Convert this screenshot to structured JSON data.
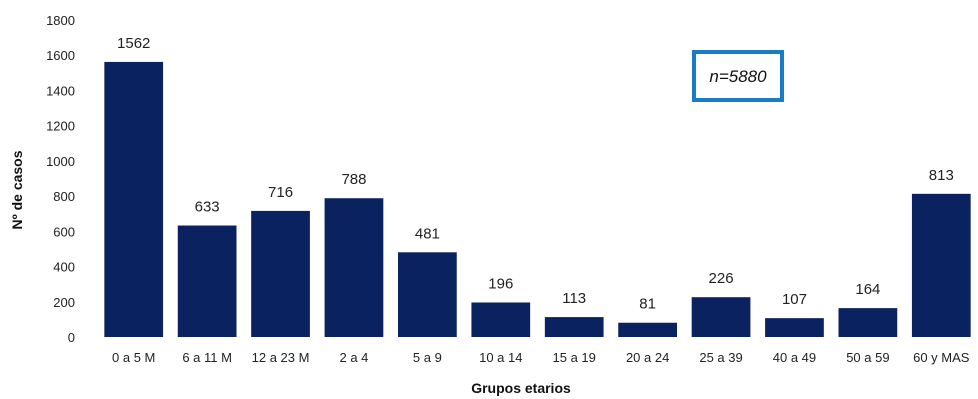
{
  "chart_data": {
    "type": "bar",
    "categories": [
      "0 a 5 M",
      "6 a 11 M",
      "12 a 23 M",
      "2 a 4",
      "5 a 9",
      "10 a 14",
      "15 a 19",
      "20 a 24",
      "25 a 39",
      "40 a 49",
      "50 a 59",
      "60 y MAS"
    ],
    "values": [
      1562,
      633,
      716,
      788,
      481,
      196,
      113,
      81,
      226,
      107,
      164,
      813
    ],
    "title": "",
    "xlabel": "Grupos etarios",
    "ylabel": "Nº de casos",
    "ylim": [
      0,
      1800
    ],
    "yticks": [
      0,
      200,
      400,
      600,
      800,
      1000,
      1200,
      1400,
      1600,
      1800
    ],
    "annotation": "n=5880",
    "grid": false,
    "legend": "none",
    "colors": {
      "bar": "#0a2260",
      "annotation_border": "#1a7cc4"
    }
  }
}
